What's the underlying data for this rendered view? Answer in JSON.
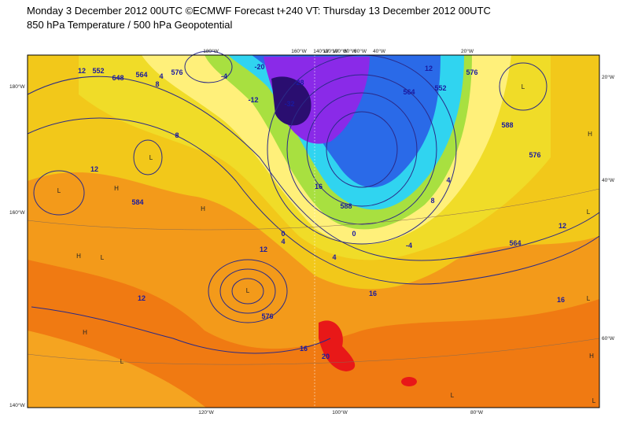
{
  "header": {
    "title": "Monday 3 December 2012 00UTC ©ECMWF Forecast t+240 VT: Thursday 13 December 2012 00UTC",
    "subtitle": "850 hPa Temperature / 500 hPa Geopotential"
  },
  "map": {
    "top_labels": [
      "180°W",
      "160°W",
      "140°W",
      "120°W",
      "100°W",
      "80°W",
      "60°W",
      "40°W",
      "20°W"
    ],
    "bottom_labels": [
      "120°W",
      "100°W",
      "80°W"
    ],
    "left_labels": [
      "180°W",
      "160°W",
      "140°W"
    ],
    "right_labels": [
      "20°W",
      "40°W",
      "60°W"
    ],
    "contour_labels": [
      "552",
      "12",
      "648",
      "564",
      "576",
      "4",
      "8",
      "-4",
      "-28",
      "-32",
      "-20",
      "-12",
      "552",
      "564",
      "12",
      "576",
      "588",
      "12",
      "8",
      "584",
      "12",
      "4",
      "0",
      "12",
      "576",
      "16",
      "20",
      "16",
      "564",
      "576",
      "588",
      "12",
      "16",
      "16",
      "-4",
      "0",
      "4",
      "8",
      "4"
    ],
    "pressure_marks": [
      "H",
      "H",
      "L",
      "L",
      "H",
      "L",
      "H",
      "L",
      "L",
      "H",
      "L",
      "L",
      "H",
      "L",
      "L",
      "L"
    ]
  }
}
